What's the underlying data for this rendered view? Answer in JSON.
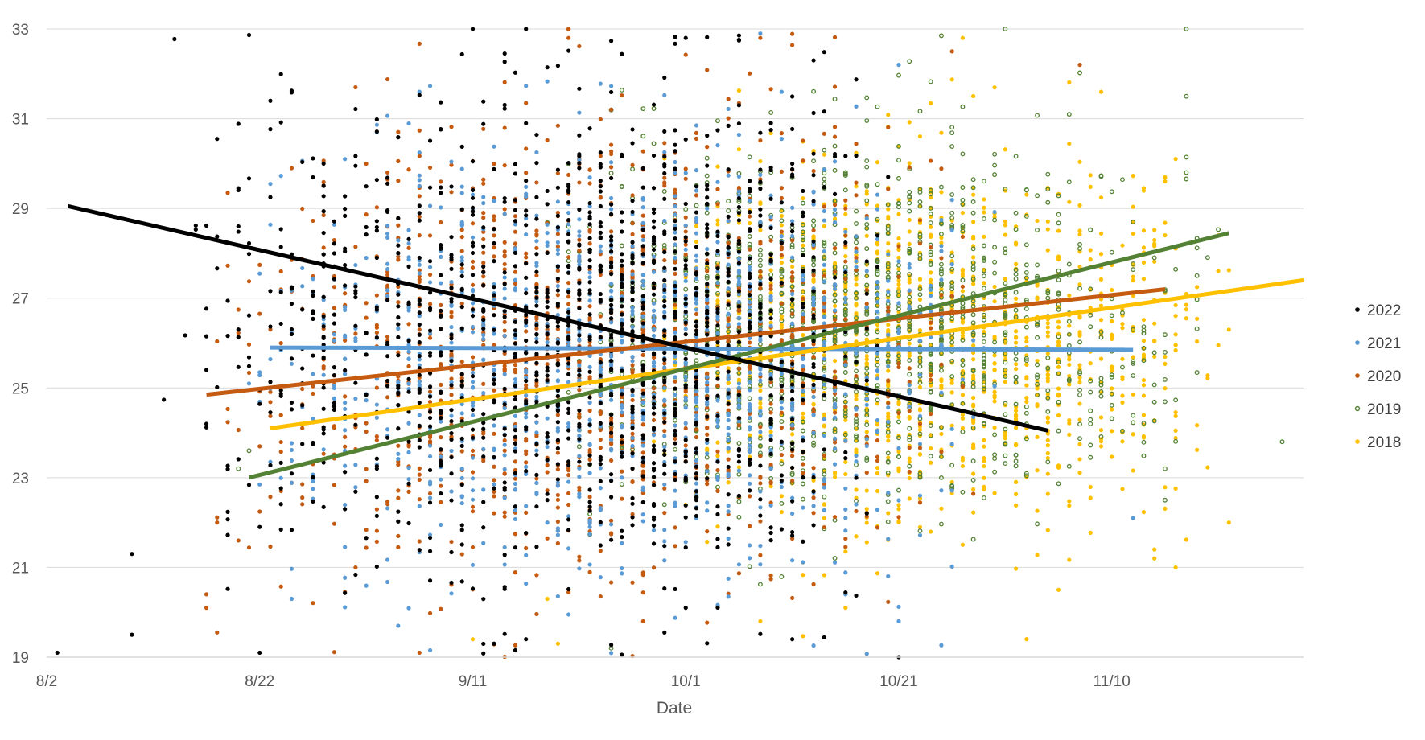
{
  "chart_data": {
    "type": "scatter",
    "title": "",
    "xlabel": "Date",
    "ylabel": "",
    "x_axis": {
      "type": "date",
      "range": [
        "2022-08-02",
        "2022-11-28"
      ],
      "ticks": [
        {
          "date": "2022-08-02",
          "label": "8/2"
        },
        {
          "date": "2022-08-22",
          "label": "8/22"
        },
        {
          "date": "2022-09-11",
          "label": "9/11"
        },
        {
          "date": "2022-10-01",
          "label": "10/1"
        },
        {
          "date": "2022-10-21",
          "label": "10/21"
        },
        {
          "date": "2022-11-10",
          "label": "11/10"
        }
      ]
    },
    "y_axis": {
      "range": [
        19,
        33
      ],
      "ticks": [
        19,
        21,
        23,
        25,
        27,
        29,
        31,
        33
      ]
    },
    "grid": "horizontal major gridlines",
    "legend_position": "right",
    "series": [
      {
        "name": "2022",
        "color": "#000000",
        "marker": "filled-circle",
        "trendline": {
          "start": {
            "x": "2022-08-04",
            "y": 29.05
          },
          "end": {
            "x": "2022-11-04",
            "y": 24.05
          }
        },
        "cluster": {
          "x_start": "2022-08-25",
          "x_end": "2022-11-03",
          "x_peak": "2022-09-14",
          "y_mean": 26.2,
          "y_sd": 2.6
        },
        "points": [
          {
            "x": "2022-08-03",
            "y": 19.1
          },
          {
            "x": "2022-08-10",
            "y": 21.3
          },
          {
            "x": "2022-08-10",
            "y": 19.5
          },
          {
            "x": "2022-08-17",
            "y": 25.4
          },
          {
            "x": "2022-08-17",
            "y": 24.2
          },
          {
            "x": "2022-08-23",
            "y": 31.4
          },
          {
            "x": "2022-08-22",
            "y": 19.1
          },
          {
            "x": "2022-08-22",
            "y": 21.9
          },
          {
            "x": "2022-09-11",
            "y": 33.0
          },
          {
            "x": "2022-09-16",
            "y": 33.0
          },
          {
            "x": "2022-10-01",
            "y": 32.8
          },
          {
            "x": "2022-10-01",
            "y": 20.1
          },
          {
            "x": "2022-10-13",
            "y": 32.3
          },
          {
            "x": "2022-10-11",
            "y": 19.4
          },
          {
            "x": "2022-10-21",
            "y": 19.0
          },
          {
            "x": "2022-09-13",
            "y": 19.3
          },
          {
            "x": "2022-09-16",
            "y": 19.4
          }
        ]
      },
      {
        "name": "2021",
        "color": "#5B9BD5",
        "marker": "filled-circle",
        "trendline": {
          "start": {
            "x": "2022-08-23",
            "y": 25.9
          },
          "end": {
            "x": "2022-11-12",
            "y": 25.85
          }
        },
        "cluster": {
          "x_start": "2022-08-24",
          "x_end": "2022-11-06",
          "x_peak": "2022-09-24",
          "y_mean": 25.6,
          "y_sd": 2.2
        },
        "points": [
          {
            "x": "2022-08-30",
            "y": 30.1
          },
          {
            "x": "2022-09-02",
            "y": 30.7
          },
          {
            "x": "2022-09-06",
            "y": 31.6
          },
          {
            "x": "2022-10-08",
            "y": 32.9
          },
          {
            "x": "2022-10-10",
            "y": 31.6
          },
          {
            "x": "2022-10-21",
            "y": 32.2
          },
          {
            "x": "2022-11-12",
            "y": 22.1
          },
          {
            "x": "2022-10-21",
            "y": 19.8
          },
          {
            "x": "2022-09-04",
            "y": 19.7
          },
          {
            "x": "2022-08-25",
            "y": 20.3
          }
        ]
      },
      {
        "name": "2020",
        "color": "#C55A11",
        "marker": "filled-circle",
        "trendline": {
          "start": {
            "x": "2022-08-17",
            "y": 24.85
          },
          "end": {
            "x": "2022-11-15",
            "y": 27.2
          }
        },
        "cluster": {
          "x_start": "2022-08-20",
          "x_end": "2022-11-03",
          "x_peak": "2022-09-21",
          "y_mean": 25.8,
          "y_sd": 2.4
        },
        "points": [
          {
            "x": "2022-08-17",
            "y": 20.4
          },
          {
            "x": "2022-08-17",
            "y": 20.1
          },
          {
            "x": "2022-08-18",
            "y": 22.0
          },
          {
            "x": "2022-08-20",
            "y": 21.6
          },
          {
            "x": "2022-09-20",
            "y": 33.0
          },
          {
            "x": "2022-10-08",
            "y": 32.8
          },
          {
            "x": "2022-10-26",
            "y": 32.5
          },
          {
            "x": "2022-11-07",
            "y": 32.2
          },
          {
            "x": "2022-09-06",
            "y": 19.1
          },
          {
            "x": "2022-09-27",
            "y": 19.8
          }
        ]
      },
      {
        "name": "2019",
        "color": "#548235",
        "marker": "hollow-circle",
        "trendline": {
          "start": {
            "x": "2022-08-21",
            "y": 23.0
          },
          "end": {
            "x": "2022-11-21",
            "y": 28.45
          }
        },
        "cluster": {
          "x_start": "2022-09-10",
          "x_end": "2022-11-14",
          "x_peak": "2022-10-20",
          "y_mean": 26.4,
          "y_sd": 1.9
        },
        "points": [
          {
            "x": "2022-10-31",
            "y": 33.0
          },
          {
            "x": "2022-11-17",
            "y": 33.0
          },
          {
            "x": "2022-11-17",
            "y": 31.5
          },
          {
            "x": "2022-11-12",
            "y": 28.7
          },
          {
            "x": "2022-11-18",
            "y": 27.5
          },
          {
            "x": "2022-11-26",
            "y": 23.8
          },
          {
            "x": "2022-11-15",
            "y": 22.5
          },
          {
            "x": "2022-11-15",
            "y": 23.2
          },
          {
            "x": "2022-09-24",
            "y": 19.2
          },
          {
            "x": "2022-08-21",
            "y": 23.6
          },
          {
            "x": "2022-08-20",
            "y": 23.2
          }
        ]
      },
      {
        "name": "2018",
        "color": "#FFC000",
        "marker": "filled-circle",
        "trendline": {
          "start": {
            "x": "2022-08-23",
            "y": 24.1
          },
          "end": {
            "x": "2022-11-28",
            "y": 27.4
          }
        },
        "cluster": {
          "x_start": "2022-09-21",
          "x_end": "2022-11-17",
          "x_peak": "2022-10-26",
          "y_mean": 26.0,
          "y_sd": 1.9
        },
        "points": [
          {
            "x": "2022-10-27",
            "y": 32.8
          },
          {
            "x": "2022-11-09",
            "y": 31.6
          },
          {
            "x": "2022-11-20",
            "y": 28.4
          },
          {
            "x": "2022-11-21",
            "y": 26.3
          },
          {
            "x": "2022-11-21",
            "y": 22.0
          },
          {
            "x": "2022-11-14",
            "y": 21.2
          },
          {
            "x": "2022-11-14",
            "y": 21.4
          },
          {
            "x": "2022-11-05",
            "y": 20.5
          },
          {
            "x": "2022-10-16",
            "y": 20.1
          },
          {
            "x": "2022-10-08",
            "y": 19.8
          },
          {
            "x": "2022-09-19",
            "y": 19.3
          },
          {
            "x": "2022-09-11",
            "y": 19.4
          },
          {
            "x": "2022-09-18",
            "y": 20.3
          },
          {
            "x": "2022-11-16",
            "y": 21.0
          }
        ]
      }
    ]
  }
}
